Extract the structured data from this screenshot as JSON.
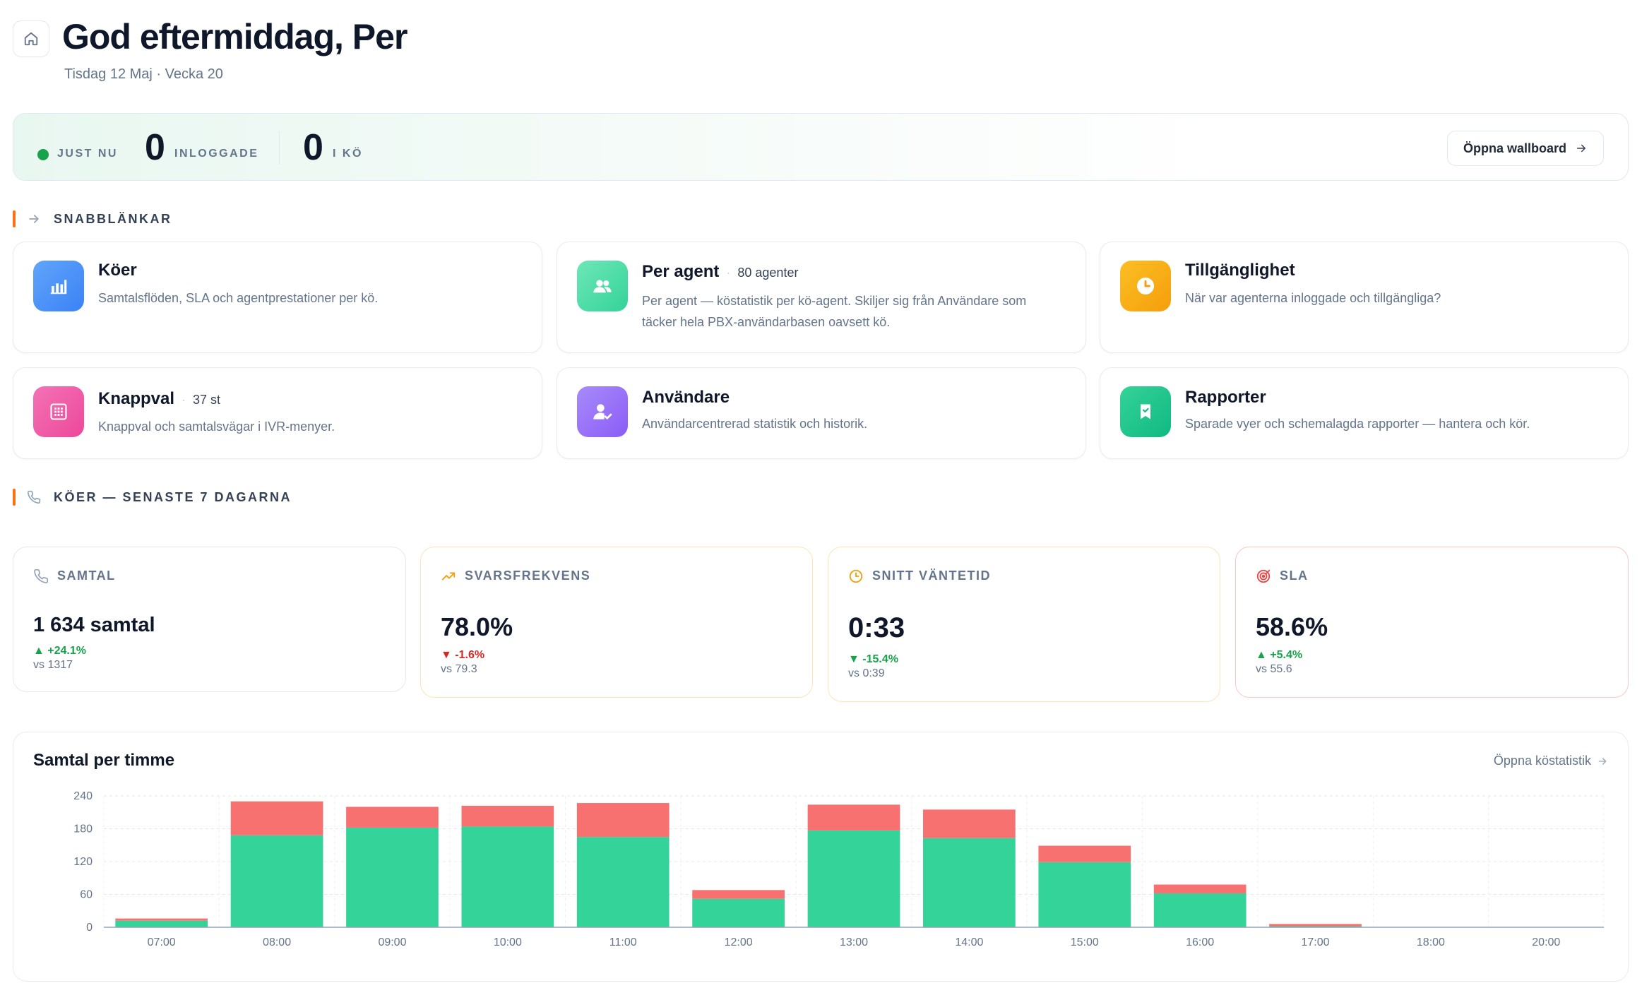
{
  "header": {
    "greeting": "God eftermiddag, Per",
    "date_line": "Tisdag 12 Maj · Vecka 20",
    "home_icon": "home-icon"
  },
  "live": {
    "status_label": "JUST NU",
    "status_color": "#16a34a",
    "logged_in_value": "0",
    "logged_in_label": "INLOGGADE",
    "queue_value": "0",
    "queue_label": "I KÖ",
    "wallboard_button": "Öppna wallboard"
  },
  "quicklinks": {
    "section_title": "SNABBLÄNKAR",
    "cards": [
      {
        "title": "Köer",
        "badge": "",
        "description": "Samtalsflöden, SLA och agentprestationer per kö.",
        "icon": "bar-chart-icon",
        "color": "#3b82f6"
      },
      {
        "title": "Per agent",
        "badge": "80 agenter",
        "description": "Per agent — köstatistik per kö-agent. Skiljer sig från Användare som",
        "description2": "täcker hela PBX-användarbasen oavsett kö.",
        "icon": "users-icon",
        "color": "#34d399"
      },
      {
        "title": "Tillgänglighet",
        "badge": "",
        "description": "När var agenterna inloggade och tillgängliga?",
        "icon": "clock-icon",
        "color": "#f59e0b"
      },
      {
        "title": "Knappval",
        "badge": "37 st",
        "description": "Knappval och samtalsvägar i IVR-menyer.",
        "icon": "keypad-icon",
        "color": "#ec4899"
      },
      {
        "title": "Användare",
        "badge": "",
        "description": "Användarcentrerad statistik och historik.",
        "icon": "user-check-icon",
        "color": "#8b5cf6"
      },
      {
        "title": "Rapporter",
        "badge": "",
        "description": "Sparade vyer och schemalagda rapporter — hantera och kör.",
        "icon": "bookmark-icon",
        "color": "#10b981"
      }
    ]
  },
  "queues": {
    "section_title": "KÖER — SENASTE 7 DAGARNA",
    "kpis": [
      {
        "label": "SAMTAL",
        "value": "1 634 samtal",
        "delta": "+24.1%",
        "direction": "up",
        "compare": "vs 1317",
        "icon": "phone-icon"
      },
      {
        "label": "SVARSFREKVENS",
        "value": "78.0%",
        "delta": "-1.6%",
        "direction": "down",
        "compare": "vs 79.3",
        "icon": "trending-up-icon"
      },
      {
        "label": "SNITT VÄNTETID",
        "value": "0:33",
        "delta": "-15.4%",
        "direction": "down-good",
        "compare": "vs 0:39",
        "icon": "clock-icon"
      },
      {
        "label": "SLA",
        "value": "58.6%",
        "delta": "+5.4%",
        "direction": "up",
        "compare": "vs 55.6",
        "icon": "target-icon"
      }
    ]
  },
  "chart_section": {
    "title": "Samtal per timme",
    "link": "Öppna köstatistik"
  },
  "chart_data": {
    "type": "bar",
    "stacked": true,
    "categories": [
      "07:00",
      "08:00",
      "09:00",
      "10:00",
      "11:00",
      "12:00",
      "13:00",
      "14:00",
      "15:00",
      "16:00",
      "17:00",
      "18:00",
      "20:00"
    ],
    "series": [
      {
        "color": "#34d399",
        "values": [
          12,
          168,
          182,
          184,
          165,
          52,
          177,
          163,
          119,
          62,
          2,
          0,
          0
        ]
      },
      {
        "color": "#f87171",
        "values": [
          4,
          62,
          38,
          38,
          62,
          16,
          47,
          52,
          30,
          16,
          4,
          0,
          0
        ]
      }
    ],
    "ylim": [
      0,
      240
    ],
    "yticks": [
      0,
      60,
      120,
      180,
      240
    ],
    "grid": true
  }
}
